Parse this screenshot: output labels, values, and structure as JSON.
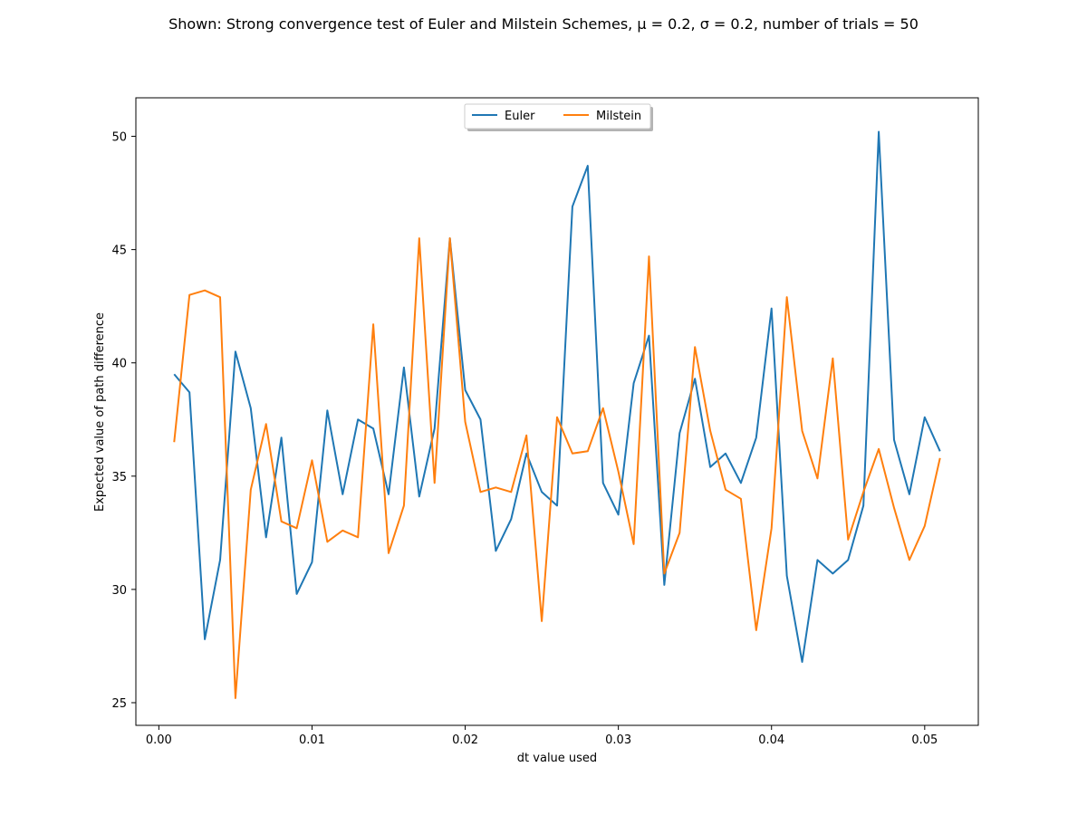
{
  "chart_data": {
    "type": "line",
    "title": "Shown: Strong convergence test of Euler and Milstein Schemes, μ = 0.2, σ = 0.2, number of trials = 50",
    "xlabel": "dt value used",
    "ylabel": "Expected value of path difference",
    "xlim": [
      -0.0015,
      0.0535
    ],
    "ylim": [
      24.0,
      51.7
    ],
    "xticks": [
      0.0,
      0.01,
      0.02,
      0.03,
      0.04,
      0.05
    ],
    "xtick_labels": [
      "0.00",
      "0.01",
      "0.02",
      "0.03",
      "0.04",
      "0.05"
    ],
    "yticks": [
      25,
      30,
      35,
      40,
      45,
      50
    ],
    "ytick_labels": [
      "25",
      "30",
      "35",
      "40",
      "45",
      "50"
    ],
    "grid": false,
    "legend": {
      "placement": "upper-center",
      "ncol": 2
    },
    "x": [
      0.001,
      0.002,
      0.003,
      0.004,
      0.005,
      0.006,
      0.007,
      0.008,
      0.009,
      0.01,
      0.011,
      0.012,
      0.013,
      0.014,
      0.015,
      0.016,
      0.017,
      0.018,
      0.019,
      0.02,
      0.021,
      0.022,
      0.023,
      0.024,
      0.025,
      0.026,
      0.027,
      0.028,
      0.029,
      0.03,
      0.031,
      0.032,
      0.033,
      0.034,
      0.035,
      0.036,
      0.037,
      0.038,
      0.039,
      0.04,
      0.041,
      0.042,
      0.043,
      0.044,
      0.045,
      0.046,
      0.047,
      0.048,
      0.049,
      0.05,
      0.051
    ],
    "series": [
      {
        "name": "Euler",
        "color": "#1f77b4",
        "values": [
          39.5,
          38.7,
          27.8,
          31.3,
          40.5,
          38.0,
          32.3,
          36.7,
          29.8,
          31.2,
          37.9,
          34.2,
          37.5,
          37.1,
          34.2,
          39.8,
          34.1,
          37.1,
          45.5,
          38.8,
          37.5,
          31.7,
          33.1,
          36.0,
          34.3,
          33.7,
          46.9,
          48.7,
          34.7,
          33.3,
          39.1,
          41.2,
          30.2,
          36.9,
          39.3,
          35.4,
          36.0,
          34.7,
          36.7,
          42.4,
          30.6,
          26.8,
          31.3,
          30.7,
          31.3,
          33.7,
          50.2,
          36.6,
          34.2,
          37.6,
          36.1
        ]
      },
      {
        "name": "Milstein",
        "color": "#ff7f0e",
        "values": [
          36.5,
          43.0,
          43.2,
          42.9,
          25.2,
          34.4,
          37.3,
          33.0,
          32.7,
          35.7,
          32.1,
          32.6,
          32.3,
          41.7,
          31.6,
          33.7,
          45.5,
          34.7,
          45.5,
          37.4,
          34.3,
          34.5,
          34.3,
          36.8,
          28.6,
          37.6,
          36.0,
          36.1,
          38.0,
          35.2,
          32.0,
          44.7,
          30.7,
          32.5,
          40.7,
          37.0,
          34.4,
          34.0,
          28.2,
          32.7,
          42.9,
          37.0,
          34.9,
          40.2,
          32.2,
          34.3,
          36.2,
          33.6,
          31.3,
          32.8,
          35.8
        ]
      }
    ]
  }
}
